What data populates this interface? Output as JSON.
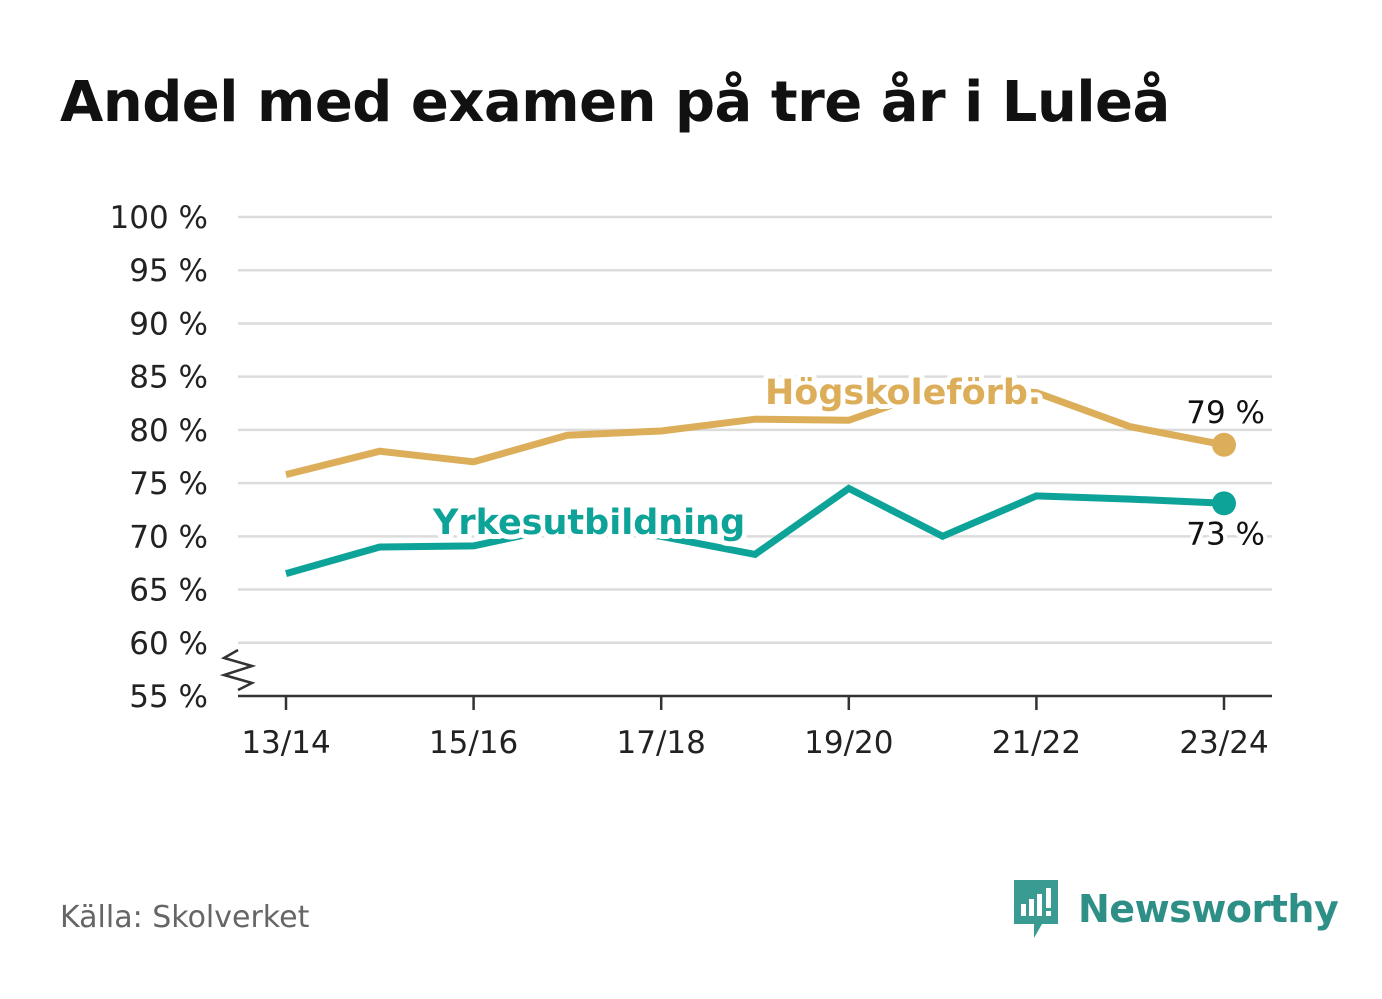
{
  "title": "Andel med examen på tre år i Luleå",
  "source": "Källa: Skolverket",
  "brand": {
    "name": "Newsworthy",
    "icon": "newsworthy-logo-icon",
    "color": "#3a9b93"
  },
  "colors": {
    "hogskole": "#dcae5a",
    "yrkes": "#0ea398",
    "grid": "#dcdcdc",
    "axis": "#333333"
  },
  "chart_data": {
    "type": "line",
    "title": "Andel med examen på tre år i Luleå",
    "x": [
      "13/14",
      "14/15",
      "15/16",
      "16/17",
      "17/18",
      "18/19",
      "19/20",
      "20/21",
      "21/22",
      "22/23",
      "23/24"
    ],
    "x_tick_labels": [
      "13/14",
      "15/16",
      "17/18",
      "19/20",
      "21/22",
      "23/24"
    ],
    "y_tick_labels": [
      "100 %",
      "95 %",
      "90 %",
      "85 %",
      "80 %",
      "75 %",
      "70 %",
      "65 %",
      "60 %",
      "55 %"
    ],
    "ylim": [
      55,
      100
    ],
    "y_axis_break": true,
    "grid": true,
    "series": [
      {
        "name": "Högskoleförb.",
        "color": "#dcae5a",
        "values": [
          75.8,
          78.0,
          77.0,
          79.5,
          79.9,
          81.0,
          80.9,
          84.0,
          83.5,
          80.3,
          78.6
        ],
        "end_label": "79 %"
      },
      {
        "name": "Yrkesutbildning",
        "color": "#0ea398",
        "values": [
          66.5,
          69.0,
          69.1,
          71.0,
          70.0,
          68.3,
          74.5,
          70.0,
          73.8,
          73.5,
          73.1
        ],
        "end_label": "73 %"
      }
    ]
  }
}
